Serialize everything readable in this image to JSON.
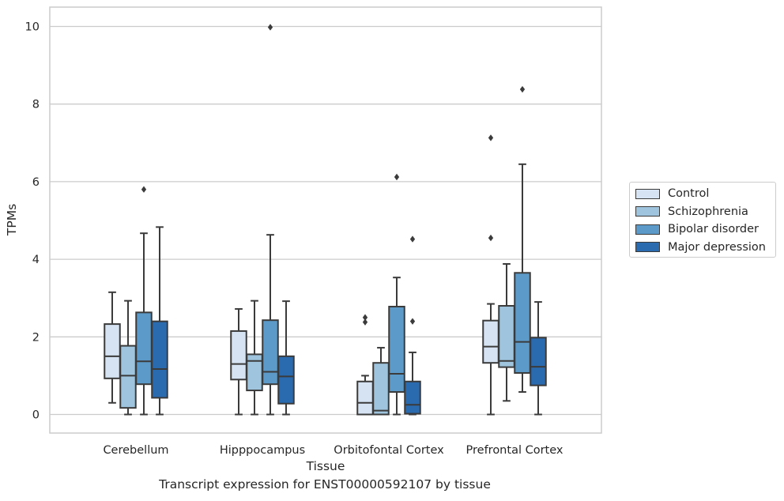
{
  "chart_data": {
    "type": "boxplot",
    "title": "Transcript expression for ENST00000592107 by tissue",
    "xlabel": "Tissue",
    "ylabel": "TPMs",
    "ylim": [
      -0.45,
      10.5
    ],
    "yticks": [
      0,
      2,
      4,
      6,
      8,
      10
    ],
    "grid": "horizontal",
    "legend_position": "right",
    "categories": [
      "Cerebellum",
      "Hipppocampus",
      "Orbitofontal Cortex",
      "Prefrontal Cortex"
    ],
    "series": [
      {
        "name": "Control",
        "color": "#d5e3f2",
        "boxes": [
          {
            "whislo": 0.3,
            "q1": 0.93,
            "med": 1.5,
            "q3": 2.33,
            "whishi": 3.15,
            "fliers": []
          },
          {
            "whislo": 0.0,
            "q1": 0.9,
            "med": 1.3,
            "q3": 2.15,
            "whishi": 2.72,
            "fliers": []
          },
          {
            "whislo": 0.0,
            "q1": 0.0,
            "med": 0.3,
            "q3": 0.85,
            "whishi": 1.0,
            "fliers": [
              2.38,
              2.5
            ]
          },
          {
            "whislo": 0.0,
            "q1": 1.33,
            "med": 1.75,
            "q3": 2.42,
            "whishi": 2.85,
            "fliers": [
              4.55,
              7.13
            ]
          }
        ]
      },
      {
        "name": "Schizophrenia",
        "color": "#9ec4de",
        "boxes": [
          {
            "whislo": 0.0,
            "q1": 0.17,
            "med": 1.0,
            "q3": 1.77,
            "whishi": 2.93,
            "fliers": []
          },
          {
            "whislo": 0.0,
            "q1": 0.62,
            "med": 1.38,
            "q3": 1.55,
            "whishi": 2.93,
            "fliers": []
          },
          {
            "whislo": 0.0,
            "q1": 0.0,
            "med": 0.1,
            "q3": 1.33,
            "whishi": 1.72,
            "fliers": []
          },
          {
            "whislo": 0.35,
            "q1": 1.22,
            "med": 1.38,
            "q3": 2.8,
            "whishi": 3.88,
            "fliers": []
          }
        ]
      },
      {
        "name": "Bipolar disorder",
        "color": "#5c9bc9",
        "boxes": [
          {
            "whislo": 0.0,
            "q1": 0.78,
            "med": 1.37,
            "q3": 2.63,
            "whishi": 4.67,
            "fliers": [
              5.8
            ]
          },
          {
            "whislo": 0.0,
            "q1": 0.78,
            "med": 1.1,
            "q3": 2.43,
            "whishi": 4.63,
            "fliers": [
              9.98
            ]
          },
          {
            "whislo": 0.0,
            "q1": 0.58,
            "med": 1.05,
            "q3": 2.78,
            "whishi": 3.53,
            "fliers": [
              6.12
            ]
          },
          {
            "whislo": 0.58,
            "q1": 1.07,
            "med": 1.87,
            "q3": 3.65,
            "whishi": 6.45,
            "fliers": [
              8.38
            ]
          }
        ]
      },
      {
        "name": "Major depression",
        "color": "#2a6aaf",
        "boxes": [
          {
            "whislo": 0.0,
            "q1": 0.43,
            "med": 1.17,
            "q3": 2.4,
            "whishi": 4.83,
            "fliers": []
          },
          {
            "whislo": 0.0,
            "q1": 0.28,
            "med": 0.98,
            "q3": 1.5,
            "whishi": 2.92,
            "fliers": []
          },
          {
            "whislo": 0.0,
            "q1": 0.02,
            "med": 0.25,
            "q3": 0.85,
            "whishi": 1.6,
            "fliers": [
              2.4,
              4.52
            ]
          },
          {
            "whislo": 0.0,
            "q1": 0.75,
            "med": 1.23,
            "q3": 1.98,
            "whishi": 2.9,
            "fliers": []
          }
        ]
      }
    ]
  }
}
